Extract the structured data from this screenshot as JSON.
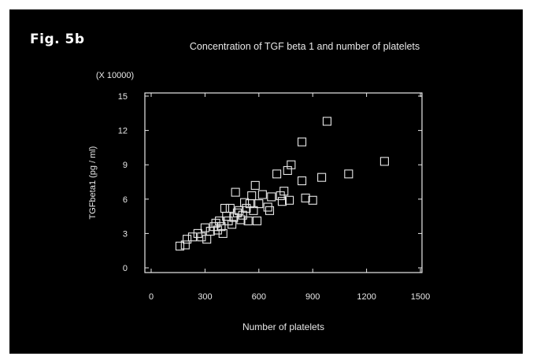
{
  "figure_label": "Fig. 5b",
  "colors": {
    "background": "#000000",
    "foreground": "#e8e8e8",
    "marker": "#e8e8e8"
  },
  "chart_data": {
    "type": "scatter",
    "title": "Concentration of TGF beta 1 and number of platelets",
    "xlabel": "Number of platelets",
    "ylabel": "TGFbeta1 (pg / ml)",
    "y_multiplier_label": "(X 10000)",
    "xlim": [
      0,
      1500
    ],
    "ylim": [
      0,
      15
    ],
    "x_ticks": [
      0,
      300,
      600,
      900,
      1200,
      1500
    ],
    "y_ticks": [
      0,
      3,
      6,
      9,
      12,
      15
    ],
    "x_tick_labels": [
      "0",
      "300",
      "600",
      "900",
      "1200",
      "1500"
    ],
    "y_tick_labels": [
      "0",
      "3",
      "6",
      "9",
      "12",
      "15"
    ],
    "grid": false,
    "marker": "open-square",
    "points": [
      [
        160,
        1.9
      ],
      [
        190,
        2.0
      ],
      [
        200,
        2.5
      ],
      [
        230,
        2.7
      ],
      [
        260,
        3.0
      ],
      [
        280,
        2.7
      ],
      [
        300,
        3.5
      ],
      [
        310,
        2.5
      ],
      [
        330,
        3.2
      ],
      [
        350,
        3.6
      ],
      [
        360,
        3.9
      ],
      [
        370,
        3.3
      ],
      [
        380,
        4.1
      ],
      [
        390,
        3.6
      ],
      [
        400,
        3.0
      ],
      [
        410,
        5.2
      ],
      [
        420,
        4.5
      ],
      [
        430,
        4.1
      ],
      [
        440,
        5.2
      ],
      [
        450,
        3.8
      ],
      [
        460,
        4.4
      ],
      [
        470,
        6.6
      ],
      [
        480,
        4.8
      ],
      [
        490,
        5.0
      ],
      [
        500,
        4.2
      ],
      [
        510,
        4.6
      ],
      [
        520,
        5.7
      ],
      [
        530,
        5.2
      ],
      [
        540,
        4.1
      ],
      [
        550,
        5.6
      ],
      [
        560,
        6.3
      ],
      [
        570,
        5.0
      ],
      [
        580,
        7.2
      ],
      [
        590,
        4.1
      ],
      [
        600,
        5.6
      ],
      [
        620,
        6.4
      ],
      [
        650,
        5.3
      ],
      [
        660,
        5.0
      ],
      [
        670,
        6.2
      ],
      [
        700,
        8.2
      ],
      [
        720,
        6.3
      ],
      [
        730,
        5.8
      ],
      [
        740,
        6.7
      ],
      [
        760,
        8.5
      ],
      [
        770,
        5.9
      ],
      [
        780,
        9.0
      ],
      [
        840,
        7.6
      ],
      [
        840,
        11.0
      ],
      [
        860,
        6.1
      ],
      [
        900,
        5.9
      ],
      [
        950,
        7.9
      ],
      [
        980,
        12.8
      ],
      [
        1100,
        8.2
      ],
      [
        1300,
        9.3
      ]
    ]
  }
}
